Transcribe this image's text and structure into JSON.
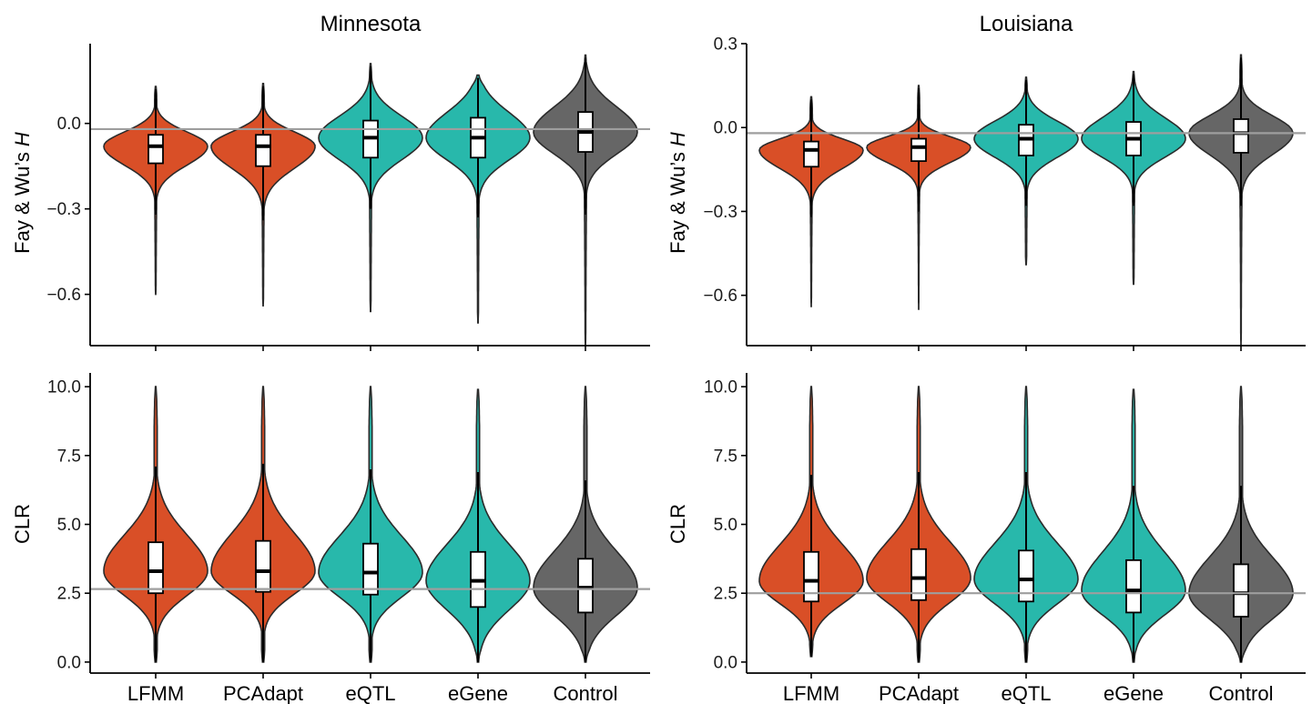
{
  "columns": [
    {
      "title": "Minnesota"
    },
    {
      "title": "Louisiana"
    }
  ],
  "categories": [
    "LFMM",
    "PCAdapt",
    "eQTL",
    "eGene",
    "Control"
  ],
  "colors": {
    "LFMM": "#d94f27",
    "PCAdapt": "#d94f27",
    "eQTL": "#28b8ab",
    "eGene": "#28b8ab",
    "Control": "#666666",
    "reference_line": "#9e9e9e",
    "outline": "#2b2b2b"
  },
  "rows": [
    {
      "ylabel_prefix": "Fay & Wu’s ",
      "ylabel_italic": "H",
      "ytick_labels": {
        "minnesota": [
          "0.0",
          "−0.3",
          "−0.6"
        ],
        "louisiana": [
          "0.3",
          "0.0",
          "−0.3",
          "−0.6"
        ]
      }
    },
    {
      "ylabel_prefix": "CLR",
      "ylabel_italic": "",
      "ytick_labels": {
        "minnesota": [
          "0.0",
          "2.5",
          "5.0",
          "7.5",
          "10.0"
        ],
        "louisiana": [
          "0.0",
          "2.5",
          "5.0",
          "7.5",
          "10.0"
        ]
      }
    }
  ],
  "chart_data": [
    {
      "type": "violin",
      "state": "Minnesota",
      "metric": "Fay & Wu's H",
      "ylim": [
        -0.78,
        0.28
      ],
      "yticks": [
        0.0,
        -0.3,
        -0.6
      ],
      "reference_line": -0.02,
      "grid": false,
      "categories": [
        "LFMM",
        "PCAdapt",
        "eQTL",
        "eGene",
        "Control"
      ],
      "stats": [
        {
          "min": -0.6,
          "q1": -0.14,
          "median": -0.08,
          "q3": -0.04,
          "max": 0.13,
          "whisker_low": -0.32,
          "whisker_high": 0.12
        },
        {
          "min": -0.64,
          "q1": -0.15,
          "median": -0.08,
          "q3": -0.04,
          "max": 0.14,
          "whisker_low": -0.34,
          "whisker_high": 0.13
        },
        {
          "min": -0.66,
          "q1": -0.12,
          "median": -0.05,
          "q3": 0.01,
          "max": 0.21,
          "whisker_low": -0.3,
          "whisker_high": 0.2
        },
        {
          "min": -0.7,
          "q1": -0.12,
          "median": -0.05,
          "q3": 0.02,
          "max": 0.17,
          "whisker_low": -0.33,
          "whisker_high": 0.16
        },
        {
          "min": -0.78,
          "q1": -0.1,
          "median": -0.03,
          "q3": 0.04,
          "max": 0.24,
          "whisker_low": -0.32,
          "whisker_high": 0.23
        }
      ]
    },
    {
      "type": "violin",
      "state": "Louisiana",
      "metric": "Fay & Wu's H",
      "ylim": [
        -0.78,
        0.3
      ],
      "yticks": [
        0.3,
        0.0,
        -0.3,
        -0.6
      ],
      "reference_line": -0.02,
      "grid": false,
      "categories": [
        "LFMM",
        "PCAdapt",
        "eQTL",
        "eGene",
        "Control"
      ],
      "stats": [
        {
          "min": -0.64,
          "q1": -0.14,
          "median": -0.08,
          "q3": -0.05,
          "max": 0.11,
          "whisker_low": -0.32,
          "whisker_high": 0.1
        },
        {
          "min": -0.65,
          "q1": -0.12,
          "median": -0.07,
          "q3": -0.04,
          "max": 0.15,
          "whisker_low": -0.3,
          "whisker_high": 0.14
        },
        {
          "min": -0.49,
          "q1": -0.1,
          "median": -0.04,
          "q3": 0.01,
          "max": 0.18,
          "whisker_low": -0.28,
          "whisker_high": 0.17
        },
        {
          "min": -0.56,
          "q1": -0.1,
          "median": -0.04,
          "q3": 0.02,
          "max": 0.2,
          "whisker_low": -0.28,
          "whisker_high": 0.19
        },
        {
          "min": -0.78,
          "q1": -0.09,
          "median": -0.02,
          "q3": 0.03,
          "max": 0.26,
          "whisker_low": -0.28,
          "whisker_high": 0.25
        }
      ]
    },
    {
      "type": "violin",
      "state": "Minnesota",
      "metric": "CLR",
      "ylim": [
        -0.4,
        10.5
      ],
      "yticks": [
        0.0,
        2.5,
        5.0,
        7.5,
        10.0
      ],
      "reference_line": 2.65,
      "grid": false,
      "categories": [
        "LFMM",
        "PCAdapt",
        "eQTL",
        "eGene",
        "Control"
      ],
      "stats": [
        {
          "min": 0.0,
          "q1": 2.5,
          "median": 3.3,
          "q3": 4.35,
          "max": 10.0,
          "whisker_low": 0.0,
          "whisker_high": 7.1
        },
        {
          "min": 0.0,
          "q1": 2.55,
          "median": 3.3,
          "q3": 4.4,
          "max": 10.0,
          "whisker_low": 0.0,
          "whisker_high": 7.2
        },
        {
          "min": 0.0,
          "q1": 2.45,
          "median": 3.25,
          "q3": 4.3,
          "max": 10.0,
          "whisker_low": 0.0,
          "whisker_high": 7.0
        },
        {
          "min": 0.0,
          "q1": 2.0,
          "median": 2.95,
          "q3": 4.0,
          "max": 9.9,
          "whisker_low": 0.0,
          "whisker_high": 6.9
        },
        {
          "min": 0.0,
          "q1": 1.8,
          "median": 2.7,
          "q3": 3.75,
          "max": 10.0,
          "whisker_low": 0.0,
          "whisker_high": 6.6
        }
      ]
    },
    {
      "type": "violin",
      "state": "Louisiana",
      "metric": "CLR",
      "ylim": [
        -0.4,
        10.5
      ],
      "yticks": [
        0.0,
        2.5,
        5.0,
        7.5,
        10.0
      ],
      "reference_line": 2.5,
      "grid": false,
      "categories": [
        "LFMM",
        "PCAdapt",
        "eQTL",
        "eGene",
        "Control"
      ],
      "stats": [
        {
          "min": 0.2,
          "q1": 2.2,
          "median": 2.95,
          "q3": 4.0,
          "max": 10.0,
          "whisker_low": 0.2,
          "whisker_high": 6.8
        },
        {
          "min": 0.0,
          "q1": 2.25,
          "median": 3.05,
          "q3": 4.1,
          "max": 10.0,
          "whisker_low": 0.0,
          "whisker_high": 6.9
        },
        {
          "min": 0.0,
          "q1": 2.2,
          "median": 3.0,
          "q3": 4.05,
          "max": 10.0,
          "whisker_low": 0.0,
          "whisker_high": 6.9
        },
        {
          "min": 0.0,
          "q1": 1.8,
          "median": 2.6,
          "q3": 3.7,
          "max": 9.9,
          "whisker_low": 0.0,
          "whisker_high": 6.4
        },
        {
          "min": 0.0,
          "q1": 1.65,
          "median": 2.5,
          "q3": 3.55,
          "max": 10.0,
          "whisker_low": 0.0,
          "whisker_high": 6.4
        }
      ]
    }
  ]
}
